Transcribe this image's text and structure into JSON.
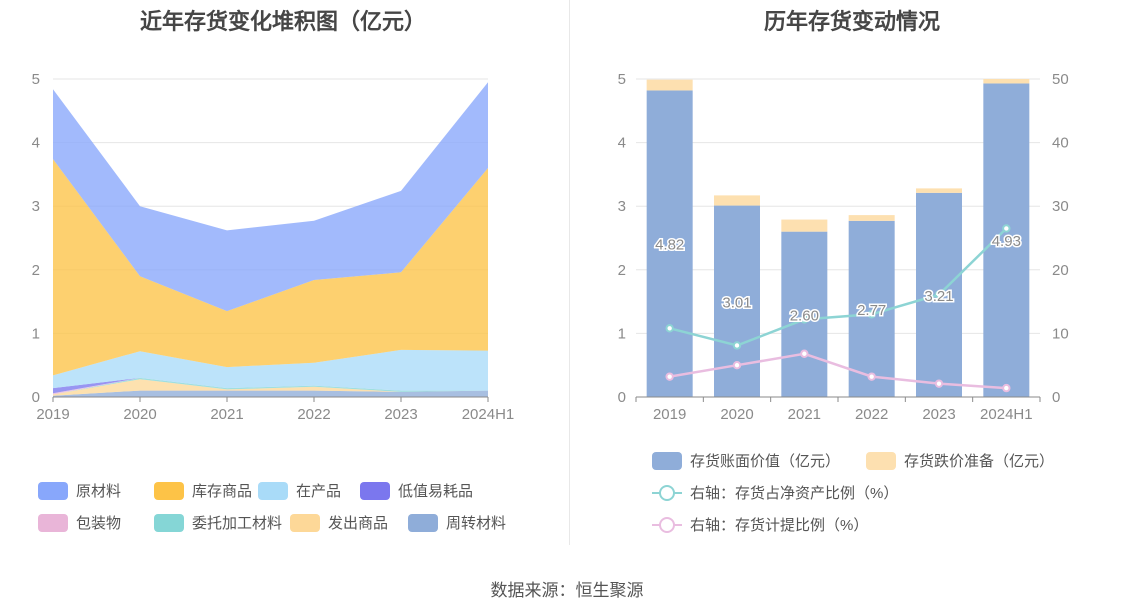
{
  "left_title": "近年存货变化堆积图（亿元）",
  "right_title": "历年存货变动情况",
  "source": "数据来源：恒生聚源",
  "chart_data": [
    {
      "type": "area",
      "stacked": true,
      "title": "近年存货变化堆积图（亿元）",
      "x": [
        "2019",
        "2020",
        "2021",
        "2022",
        "2023",
        "2024H1"
      ],
      "ylim": [
        0,
        5
      ],
      "yticks": [
        "0",
        "1",
        "2",
        "3",
        "4",
        "5"
      ],
      "grid": true,
      "legend_position": "bottom",
      "series": [
        {
          "name": "周转材料",
          "color": "#8fadd9",
          "values": [
            0.02,
            0.1,
            0.1,
            0.1,
            0.08,
            0.1
          ]
        },
        {
          "name": "发出商品",
          "color": "#fdd898",
          "values": [
            0.02,
            0.18,
            0.02,
            0.06,
            0.0,
            0.0
          ]
        },
        {
          "name": "委托加工材料",
          "color": "#85d6d6",
          "values": [
            0.0,
            0.02,
            0.02,
            0.02,
            0.02,
            0.0
          ]
        },
        {
          "name": "包装物",
          "color": "#e9b5d8",
          "values": [
            0.02,
            0.0,
            0.0,
            0.0,
            0.0,
            0.0
          ]
        },
        {
          "name": "低值易耗品",
          "color": "#7b77ee",
          "values": [
            0.08,
            0.0,
            0.0,
            0.0,
            0.0,
            0.0
          ]
        },
        {
          "name": "在产品",
          "color": "#a9dbf8",
          "values": [
            0.2,
            0.42,
            0.33,
            0.36,
            0.64,
            0.63
          ]
        },
        {
          "name": "库存商品",
          "color": "#fdc347",
          "values": [
            3.4,
            1.18,
            0.88,
            1.3,
            1.22,
            2.87
          ]
        },
        {
          "name": "原材料",
          "color": "#88a7fb",
          "values": [
            1.1,
            1.1,
            1.27,
            0.93,
            1.28,
            1.35
          ]
        }
      ]
    },
    {
      "type": "bar",
      "title": "历年存货变动情况",
      "categories": [
        "2019",
        "2020",
        "2021",
        "2022",
        "2023",
        "2024H1"
      ],
      "ylim": [
        0,
        5
      ],
      "yticks": [
        "0",
        "1",
        "2",
        "3",
        "4",
        "5"
      ],
      "y2lim": [
        0,
        50
      ],
      "y2ticks": [
        "0",
        "10",
        "20",
        "30",
        "40",
        "50"
      ],
      "grid": true,
      "legend_position": "bottom",
      "series": [
        {
          "name": "存货账面价值（亿元）",
          "type": "bar",
          "axis": "left",
          "color": "#8fadd9",
          "values": [
            4.82,
            3.01,
            2.6,
            2.77,
            3.21,
            4.93
          ],
          "labels": [
            "4.82",
            "3.01",
            "2.60",
            "2.77",
            "3.21",
            "4.93"
          ]
        },
        {
          "name": "存货跌价准备（亿元）",
          "type": "bar",
          "axis": "left",
          "color": "#fde0b0",
          "values": [
            0.17,
            0.16,
            0.19,
            0.09,
            0.07,
            0.07
          ]
        },
        {
          "name": "右轴：存货占净资产比例（%）",
          "type": "line",
          "axis": "right",
          "color": "#8dd4d4",
          "values": [
            10.8,
            8.1,
            12.2,
            13.0,
            16.1,
            26.5
          ]
        },
        {
          "name": "右轴：存货计提比例（%）",
          "type": "line",
          "axis": "right",
          "color": "#e9bde0",
          "values": [
            3.2,
            5.0,
            6.8,
            3.2,
            2.1,
            1.4
          ]
        }
      ]
    }
  ]
}
